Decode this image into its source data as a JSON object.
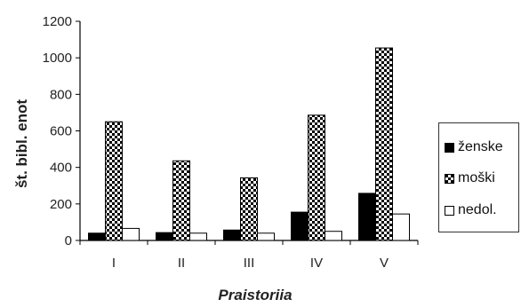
{
  "chart_data": {
    "type": "bar",
    "categories": [
      "I",
      "II",
      "III",
      "IV",
      "V"
    ],
    "series": [
      {
        "name": "ženske",
        "values": [
          40,
          43,
          57,
          155,
          258
        ],
        "color": "#000000",
        "pattern": "solid"
      },
      {
        "name": "moški",
        "values": [
          650,
          436,
          343,
          686,
          1054
        ],
        "color": "#000000",
        "pattern": "checker"
      },
      {
        "name": "nedol.",
        "values": [
          66,
          40,
          40,
          50,
          145
        ],
        "color": "#ffffff",
        "pattern": "white"
      }
    ],
    "xlabel": "Praistoriia",
    "ylabel": "št. bibl. enot",
    "ylim": [
      0,
      1200
    ],
    "yticks": [
      "0",
      "200",
      "400",
      "600",
      "800",
      "1000",
      "1200"
    ],
    "grid": false,
    "legend_position": "right"
  }
}
